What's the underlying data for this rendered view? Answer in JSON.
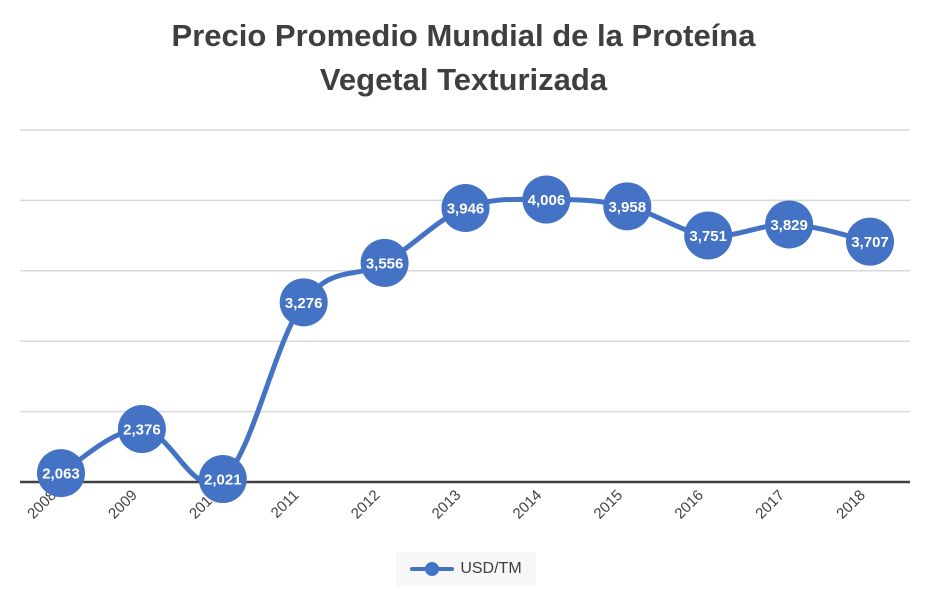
{
  "chart_data": {
    "type": "line",
    "title_lines": [
      "Precio Promedio Mundial de la Proteína",
      "Vegetal Texturizada"
    ],
    "categories": [
      "2008",
      "2009",
      "2010",
      "2011",
      "2012",
      "2013",
      "2014",
      "2015",
      "2016",
      "2017",
      "2018"
    ],
    "series": [
      {
        "name": "USD/TM",
        "values": [
          2063,
          2376,
          2021,
          3276,
          3556,
          3946,
          4006,
          3958,
          3751,
          3829,
          3707
        ],
        "labels": [
          "2,063",
          "2,376",
          "2,021",
          "3,276",
          "3,556",
          "3,946",
          "4,006",
          "3,958",
          "3,751",
          "3,829",
          "3,707"
        ]
      }
    ],
    "ylim": [
      2000,
      4500
    ],
    "ytick_step": 500,
    "y_axis_labels_shown": false,
    "grid": true,
    "legend_position": "bottom",
    "series_color": "#4472c4",
    "grid_color": "#d9d9d9",
    "axis_color": "#404040"
  }
}
